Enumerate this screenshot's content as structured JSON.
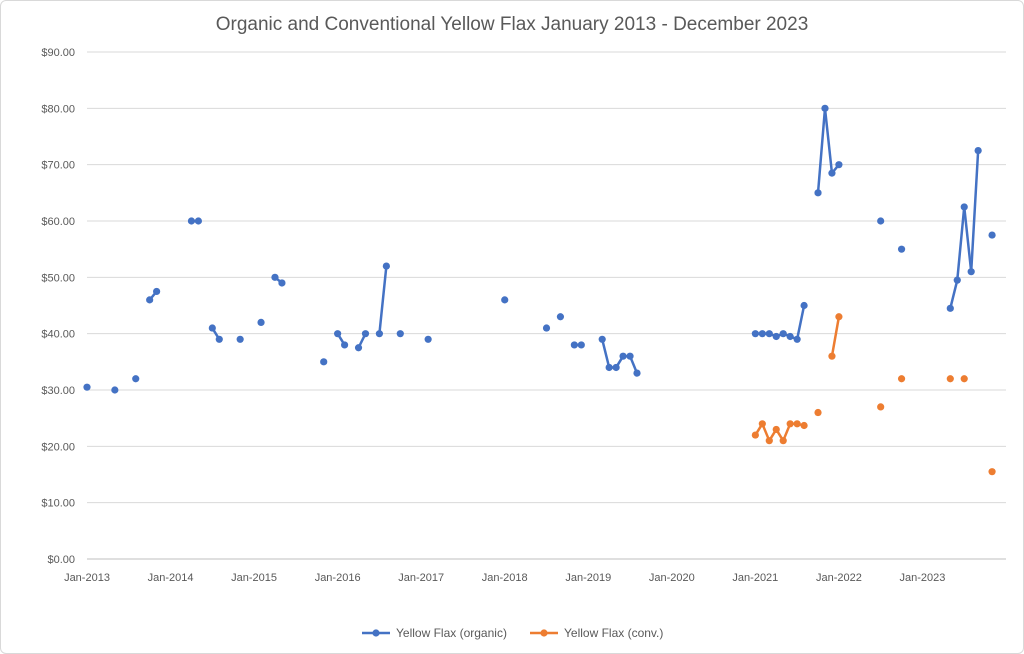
{
  "chart_data": {
    "type": "line",
    "title": "Organic and Conventional Yellow Flax January 2013 - December 2023",
    "xlabel": "",
    "ylabel": "",
    "x_tick_labels": [
      "Jan-2013",
      "Jan-2014",
      "Jan-2015",
      "Jan-2016",
      "Jan-2017",
      "Jan-2018",
      "Jan-2019",
      "Jan-2020",
      "Jan-2021",
      "Jan-2022",
      "Jan-2023"
    ],
    "y_tick_labels": [
      "$0.00",
      "$10.00",
      "$20.00",
      "$30.00",
      "$40.00",
      "$50.00",
      "$60.00",
      "$70.00",
      "$80.00",
      "$90.00"
    ],
    "ylim": [
      0,
      90
    ],
    "xlim": [
      "2013-01",
      "2023-12"
    ],
    "grid": "horizontal",
    "legend_position": "bottom",
    "series": [
      {
        "name": "Yellow Flax (organic)",
        "color": "#4472C4",
        "points": [
          [
            "2013-01",
            30.5
          ],
          [
            "2013-05",
            30.0
          ],
          [
            "2013-08",
            32.0
          ],
          [
            "2013-10",
            46.0
          ],
          [
            "2013-11",
            47.5
          ],
          [
            "2014-04",
            60.0
          ],
          [
            "2014-05",
            60.0
          ],
          [
            "2014-07",
            41.0
          ],
          [
            "2014-08",
            39.0
          ],
          [
            "2014-11",
            39.0
          ],
          [
            "2015-02",
            42.0
          ],
          [
            "2015-04",
            50.0
          ],
          [
            "2015-05",
            49.0
          ],
          [
            "2015-11",
            35.0
          ],
          [
            "2016-01",
            40.0
          ],
          [
            "2016-02",
            38.0
          ],
          [
            "2016-04",
            37.5
          ],
          [
            "2016-05",
            40.0
          ],
          [
            "2016-07",
            40.0
          ],
          [
            "2016-08",
            52.0
          ],
          [
            "2016-10",
            40.0
          ],
          [
            "2017-02",
            39.0
          ],
          [
            "2018-01",
            46.0
          ],
          [
            "2018-07",
            41.0
          ],
          [
            "2018-09",
            43.0
          ],
          [
            "2018-11",
            38.0
          ],
          [
            "2018-12",
            38.0
          ],
          [
            "2019-03",
            39.0
          ],
          [
            "2019-04",
            34.0
          ],
          [
            "2019-05",
            34.0
          ],
          [
            "2019-06",
            36.0
          ],
          [
            "2019-07",
            36.0
          ],
          [
            "2019-08",
            33.0
          ],
          [
            "2021-01",
            40.0
          ],
          [
            "2021-02",
            40.0
          ],
          [
            "2021-03",
            40.0
          ],
          [
            "2021-04",
            39.5
          ],
          [
            "2021-05",
            40.0
          ],
          [
            "2021-06",
            39.5
          ],
          [
            "2021-07",
            39.0
          ],
          [
            "2021-08",
            45.0
          ],
          [
            "2021-10",
            65.0
          ],
          [
            "2021-11",
            80.0
          ],
          [
            "2021-12",
            68.5
          ],
          [
            "2022-01",
            70.0
          ],
          [
            "2022-07",
            60.0
          ],
          [
            "2022-10",
            55.0
          ],
          [
            "2023-05",
            44.5
          ],
          [
            "2023-06",
            49.5
          ],
          [
            "2023-07",
            62.5
          ],
          [
            "2023-08",
            51.0
          ],
          [
            "2023-09",
            72.5
          ],
          [
            "2023-11",
            57.5
          ]
        ]
      },
      {
        "name": "Yellow Flax (conv.)",
        "color": "#ED7D31",
        "points": [
          [
            "2021-01",
            22.0
          ],
          [
            "2021-02",
            24.0
          ],
          [
            "2021-03",
            21.0
          ],
          [
            "2021-04",
            23.0
          ],
          [
            "2021-05",
            21.0
          ],
          [
            "2021-06",
            24.0
          ],
          [
            "2021-07",
            24.0
          ],
          [
            "2021-08",
            23.7
          ],
          [
            "2021-10",
            26.0
          ],
          [
            "2021-12",
            36.0
          ],
          [
            "2022-01",
            43.0
          ],
          [
            "2022-07",
            27.0
          ],
          [
            "2022-10",
            32.0
          ],
          [
            "2023-05",
            32.0
          ],
          [
            "2023-07",
            32.0
          ],
          [
            "2023-11",
            15.5
          ]
        ]
      }
    ]
  }
}
